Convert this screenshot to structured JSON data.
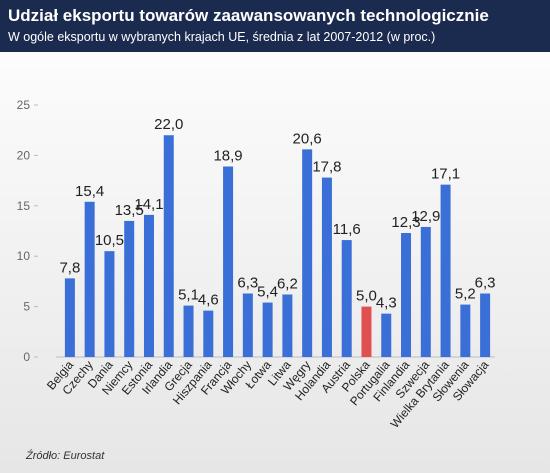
{
  "header": {
    "title": "Udział eksportu towarów zaawansowanych technologicznie",
    "subtitle": "W ogóle eksportu w wybranych krajach UE, średnia z lat 2007-2012 (w proc.)"
  },
  "source": "Źródło: Eurostat",
  "chart_data": {
    "type": "bar",
    "categories": [
      "Belgia",
      "Czechy",
      "Dania",
      "Niemcy",
      "Estonia",
      "Irlandia",
      "Grecja",
      "Hiszpania",
      "Francja",
      "Włochy",
      "Łotwa",
      "Litwa",
      "Węgry",
      "Holandia",
      "Austria",
      "Polska",
      "Portugalia",
      "Finlandia",
      "Szwecja",
      "Wielka Brytania",
      "Słowenia",
      "Słowacja"
    ],
    "values": [
      7.8,
      15.4,
      10.5,
      13.5,
      14.1,
      22.0,
      5.1,
      4.6,
      18.9,
      6.3,
      5.4,
      6.2,
      20.6,
      17.8,
      11.6,
      5.0,
      4.3,
      12.3,
      12.9,
      17.1,
      5.2,
      6.3
    ],
    "value_labels": [
      "7,8",
      "15,4",
      "10,5",
      "13,5",
      "14,1",
      "22,0",
      "5,1",
      "4,6",
      "18,9",
      "6,3",
      "5,4",
      "6,2",
      "20,6",
      "17,8",
      "11,6",
      "5,0",
      "4,3",
      "12,3",
      "12,9",
      "17,1",
      "5,2",
      "6,3"
    ],
    "colors": [
      "#3a6fd8",
      "#3a6fd8",
      "#3a6fd8",
      "#3a6fd8",
      "#3a6fd8",
      "#3a6fd8",
      "#3a6fd8",
      "#3a6fd8",
      "#3a6fd8",
      "#3a6fd8",
      "#3a6fd8",
      "#3a6fd8",
      "#3a6fd8",
      "#3a6fd8",
      "#3a6fd8",
      "#e05050",
      "#3a6fd8",
      "#3a6fd8",
      "#3a6fd8",
      "#3a6fd8",
      "#3a6fd8",
      "#3a6fd8"
    ],
    "ylim": [
      0,
      25
    ],
    "yticks": [
      0,
      5,
      10,
      15,
      20,
      25
    ]
  }
}
